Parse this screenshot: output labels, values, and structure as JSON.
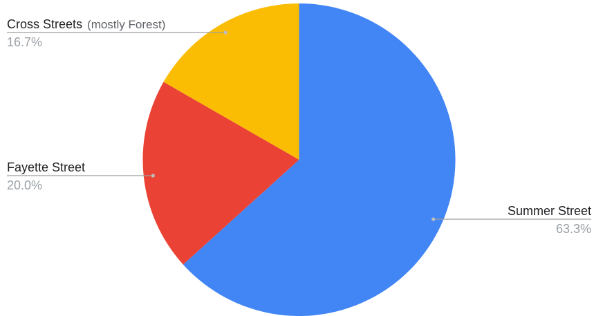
{
  "chart_data": {
    "type": "pie",
    "title": "",
    "start_angle_deg": 0,
    "direction": "clockwise",
    "slices": [
      {
        "name": "Summer Street",
        "note": "",
        "value": 63.3,
        "label": "63.3%",
        "color": "#4285f4",
        "label_side": "right"
      },
      {
        "name": "Fayette Street",
        "note": "",
        "value": 20.0,
        "label": "20.0%",
        "color": "#ea4335",
        "label_side": "left"
      },
      {
        "name": "Cross Streets",
        "note": "(mostly Forest)",
        "value": 16.7,
        "label": "16.7%",
        "color": "#fbbc04",
        "label_side": "left"
      }
    ]
  }
}
